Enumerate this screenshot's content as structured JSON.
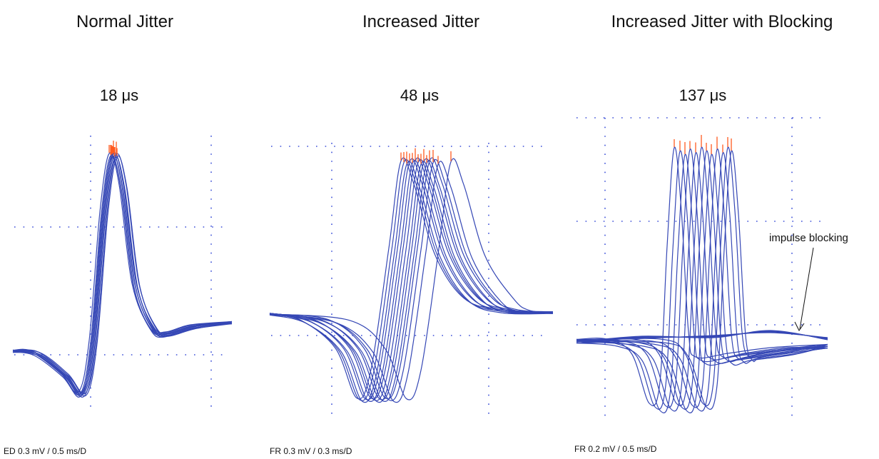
{
  "panels": [
    {
      "title": "Normal Jitter",
      "jitter": "18 μs",
      "scale": "ED 0.3 mV / 0.5 ms/D"
    },
    {
      "title": "Increased Jitter",
      "jitter": "48 μs",
      "scale": "FR 0.3 mV / 0.3 ms/D"
    },
    {
      "title": "Increased Jitter with Blocking",
      "jitter": "137 μs",
      "scale": "FR 0.2 mV / 0.5 ms/D"
    }
  ],
  "annotation": "impulse blocking"
}
